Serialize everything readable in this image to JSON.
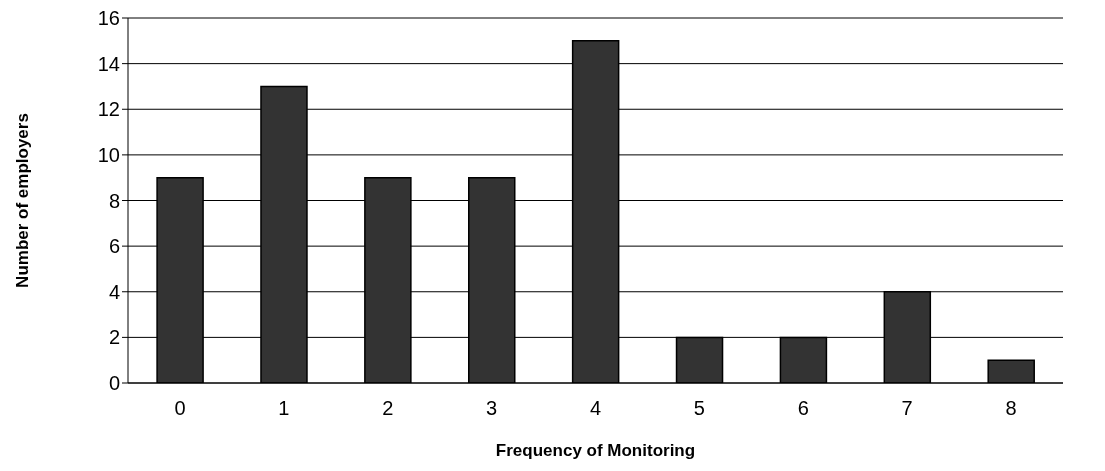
{
  "chart_data": {
    "type": "bar",
    "xlabel": "Frequency of Monitoring",
    "ylabel": "Number of employers",
    "categories": [
      "0",
      "1",
      "2",
      "3",
      "4",
      "5",
      "6",
      "7",
      "8"
    ],
    "values": [
      9,
      13,
      9,
      9,
      15,
      2,
      2,
      4,
      1
    ],
    "color": "#333333",
    "ylim": [
      0,
      16
    ],
    "yticks": [
      0,
      2,
      4,
      6,
      8,
      10,
      12,
      14,
      16
    ],
    "grid": "y",
    "legend": false
  }
}
